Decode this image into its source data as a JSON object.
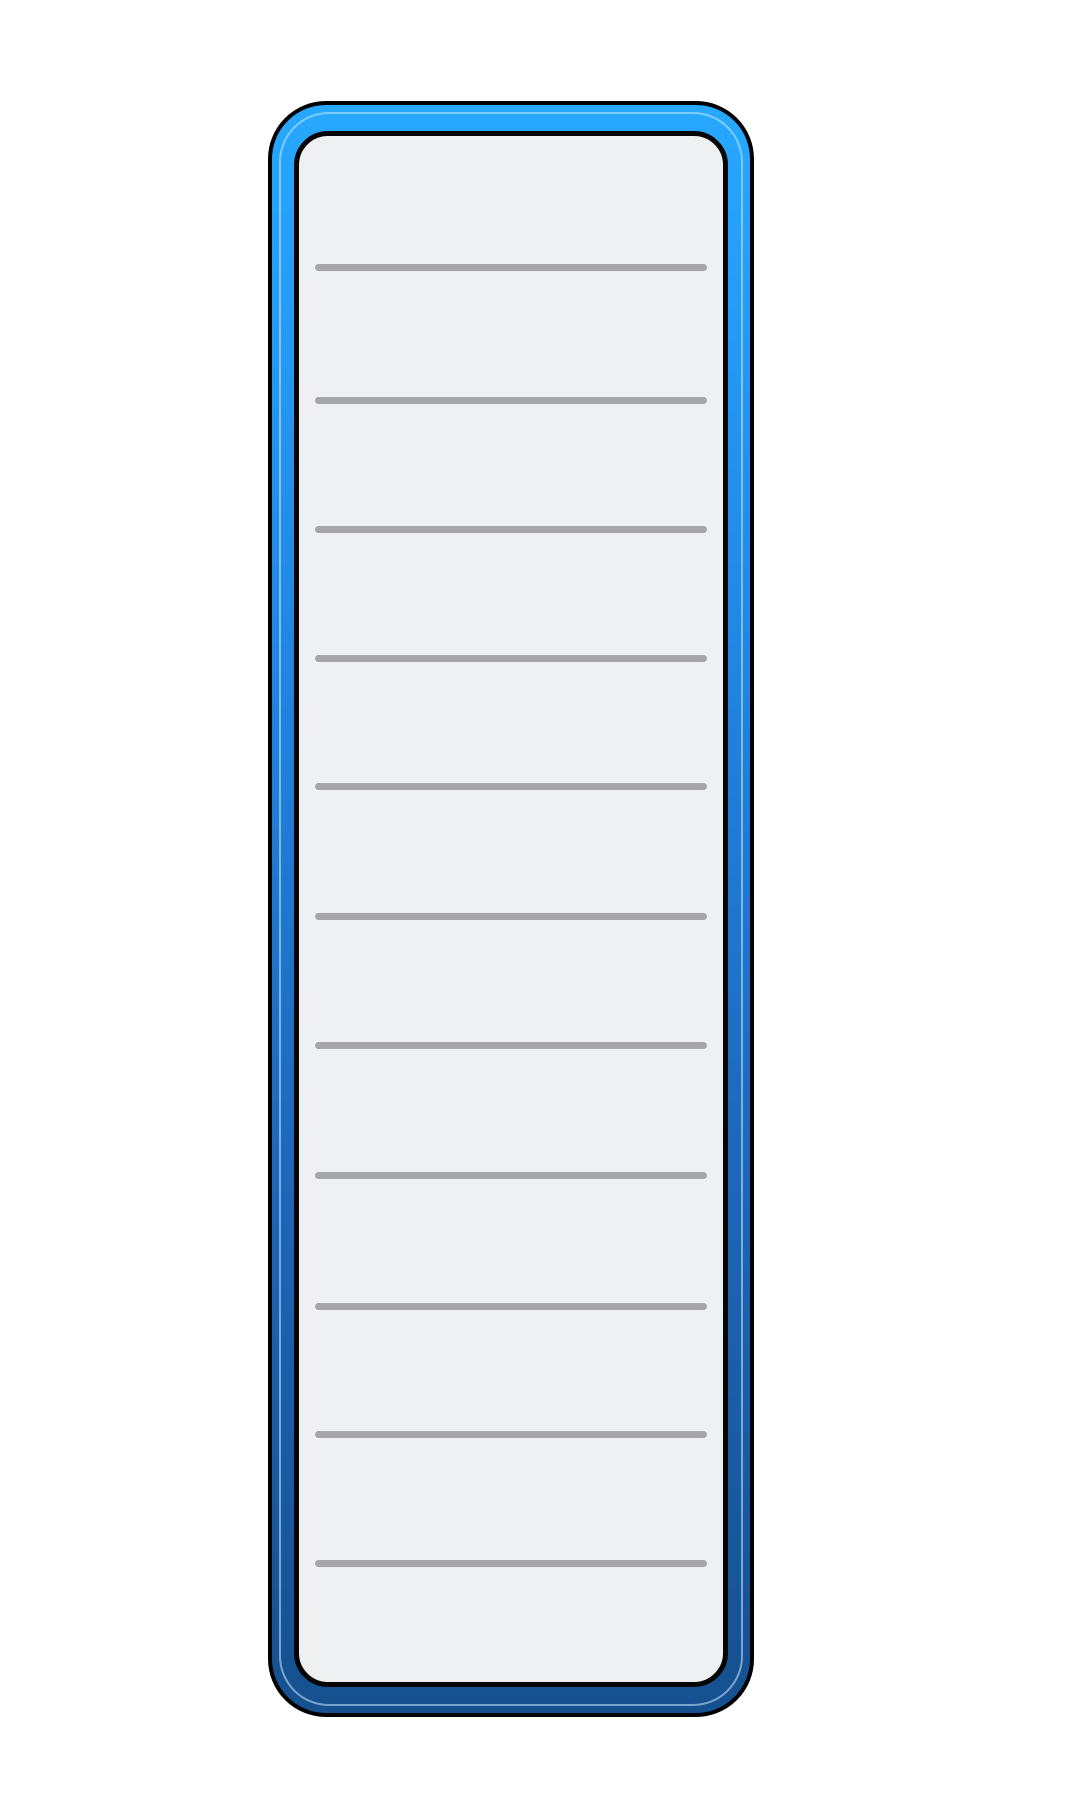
{
  "list_panel": {
    "frame_gradient": [
      "#27a8ff",
      "#2187e4",
      "#1d66b8",
      "#16508f"
    ],
    "inner_background": "#eff0f2",
    "divider_color": "#a6a6aa",
    "slots": [
      {
        "label": ""
      },
      {
        "label": ""
      },
      {
        "label": ""
      },
      {
        "label": ""
      },
      {
        "label": ""
      },
      {
        "label": ""
      },
      {
        "label": ""
      },
      {
        "label": ""
      },
      {
        "label": ""
      },
      {
        "label": ""
      },
      {
        "label": ""
      },
      {
        "label": ""
      }
    ]
  }
}
